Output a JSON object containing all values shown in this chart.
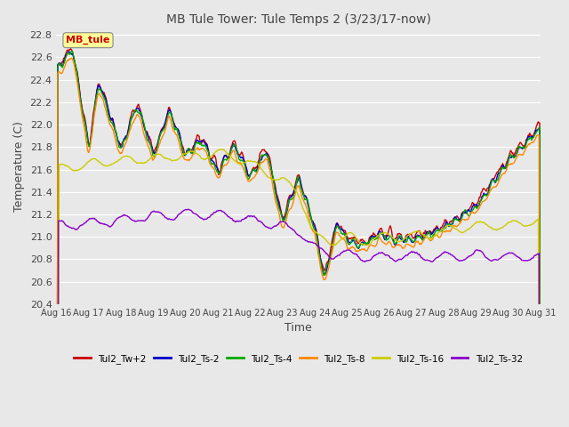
{
  "title": "MB Tule Tower: Tule Temps 2 (3/23/17-now)",
  "xlabel": "Time",
  "ylabel": "Temperature (C)",
  "ylim": [
    20.4,
    22.85
  ],
  "xlim": [
    0,
    15
  ],
  "x_tick_labels": [
    "Aug 16",
    "Aug 17",
    "Aug 18",
    "Aug 19",
    "Aug 20",
    "Aug 21",
    "Aug 22",
    "Aug 23",
    "Aug 24",
    "Aug 25",
    "Aug 26",
    "Aug 27",
    "Aug 28",
    "Aug 29",
    "Aug 30",
    "Aug 31"
  ],
  "yticks": [
    20.4,
    20.6,
    20.8,
    21.0,
    21.2,
    21.4,
    21.6,
    21.8,
    22.0,
    22.2,
    22.4,
    22.6,
    22.8
  ],
  "series_colors": [
    "#cc0000",
    "#0000cc",
    "#00aa00",
    "#ff8800",
    "#cccc00",
    "#8800cc"
  ],
  "series_labels": [
    "Tul2_Tw+2",
    "Tul2_Ts-2",
    "Tul2_Ts-4",
    "Tul2_Ts-8",
    "Tul2_Ts-16",
    "Tul2_Ts-32"
  ],
  "background_color": "#e8e8e8",
  "plot_bg_color": "#e8e8e8",
  "grid_color": "#ffffff",
  "annotation_box_color": "#ffff99",
  "annotation_text": "MB_tule",
  "annotation_text_color": "#cc0000",
  "figsize": [
    6.4,
    4.8
  ],
  "dpi": 100
}
